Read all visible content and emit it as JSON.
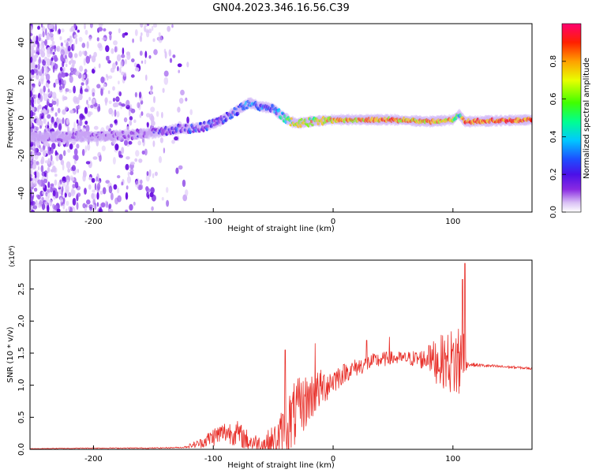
{
  "figure": {
    "title": "GN04.2023.346.16.56.C39"
  },
  "chart_data": [
    {
      "type": "heatmap",
      "xlabel": "Height of straight line (km)",
      "ylabel": "Frequency (Hz)",
      "xlim": [
        -253,
        166
      ],
      "ylim": [
        -50,
        50
      ],
      "xticks": [
        -200,
        -100,
        0,
        100
      ],
      "xtick_labels": [
        "-200",
        "-100",
        "0",
        "100"
      ],
      "yticks": [
        -40,
        -20,
        0,
        20,
        40
      ],
      "ytick_labels": [
        "-40",
        "-20",
        "0",
        "20",
        "40"
      ],
      "colorbar": {
        "label": "Normalized spectral amplitude",
        "range": [
          0,
          1
        ],
        "ticks": [
          0.0,
          0.2,
          0.4,
          0.6,
          0.8
        ],
        "tick_labels": [
          "0.0",
          "0.2",
          "0.4",
          "0.6",
          "0.8"
        ],
        "colormap": "rainbow (white, violet, blue, cyan, green, yellow, orange, red)"
      },
      "ridge": {
        "x": [
          -253,
          -200,
          -170,
          -150,
          -130,
          -110,
          -95,
          -80,
          -70,
          -60,
          -50,
          -45,
          -40,
          -35,
          -30,
          -20,
          0,
          50,
          80,
          100,
          105,
          110,
          166
        ],
        "freq": [
          -10,
          -10,
          -9,
          -8,
          -6,
          -5,
          -2,
          4,
          8,
          6,
          5,
          2,
          0,
          -2,
          -3,
          -2,
          -1,
          -1,
          -2,
          -1,
          2,
          -2,
          -1
        ],
        "amplitude": [
          0.1,
          0.12,
          0.18,
          0.22,
          0.3,
          0.3,
          0.35,
          0.4,
          0.45,
          0.4,
          0.4,
          0.55,
          0.6,
          0.75,
          0.8,
          0.8,
          0.85,
          0.9,
          0.85,
          0.85,
          0.5,
          0.95,
          0.95
        ]
      }
    },
    {
      "type": "line",
      "xlabel": "Height of straight line (km)",
      "ylabel": "SNR (10 * v/v)",
      "yscale_label": "(x10⁴)",
      "xlim": [
        -253,
        166
      ],
      "ylim": [
        0,
        2.95
      ],
      "xticks": [
        -200,
        -100,
        0,
        100
      ],
      "xtick_labels": [
        "-200",
        "-100",
        "0",
        "100"
      ],
      "yticks": [
        0.0,
        0.5,
        1.0,
        1.5,
        2.0,
        2.5
      ],
      "ytick_labels": [
        "0.0",
        "0.5",
        "1.0",
        "1.5",
        "2.0",
        "2.5"
      ],
      "series": [
        {
          "color": "#e8302a",
          "envelope_x": [
            -253,
            -200,
            -150,
            -125,
            -110,
            -100,
            -90,
            -80,
            -70,
            -60,
            -50,
            -45,
            -40,
            -35,
            -30,
            -25,
            -20,
            -10,
            0,
            10,
            20,
            30,
            40,
            50,
            60,
            70,
            80,
            90,
            95,
            100,
            105,
            110,
            112,
            115,
            130,
            150,
            166
          ],
          "envelope_y": [
            0.01,
            0.02,
            0.02,
            0.03,
            0.1,
            0.2,
            0.27,
            0.25,
            0.12,
            0.09,
            0.1,
            0.18,
            0.3,
            0.45,
            0.6,
            0.7,
            0.8,
            0.95,
            1.08,
            1.2,
            1.28,
            1.35,
            1.4,
            1.42,
            1.42,
            1.41,
            1.4,
            1.38,
            1.37,
            1.36,
            1.36,
            1.35,
            1.33,
            1.32,
            1.3,
            1.28,
            1.26
          ],
          "noise_amp_x": [
            -253,
            -125,
            -110,
            -100,
            -80,
            -60,
            -45,
            -35,
            -25,
            -10,
            10,
            40,
            60,
            80,
            85,
            95,
            100,
            108,
            112,
            166
          ],
          "noise_amp_y": [
            0.005,
            0.01,
            0.08,
            0.15,
            0.2,
            0.12,
            0.35,
            0.55,
            0.45,
            0.3,
            0.15,
            0.12,
            0.1,
            0.18,
            0.35,
            0.45,
            0.55,
            0.8,
            0.03,
            0.02
          ],
          "peaks_x": [
            -40,
            -15,
            28,
            47,
            80,
            108,
            110
          ],
          "peaks_y": [
            1.55,
            1.65,
            1.7,
            1.75,
            1.62,
            2.65,
            2.9
          ]
        }
      ]
    }
  ]
}
